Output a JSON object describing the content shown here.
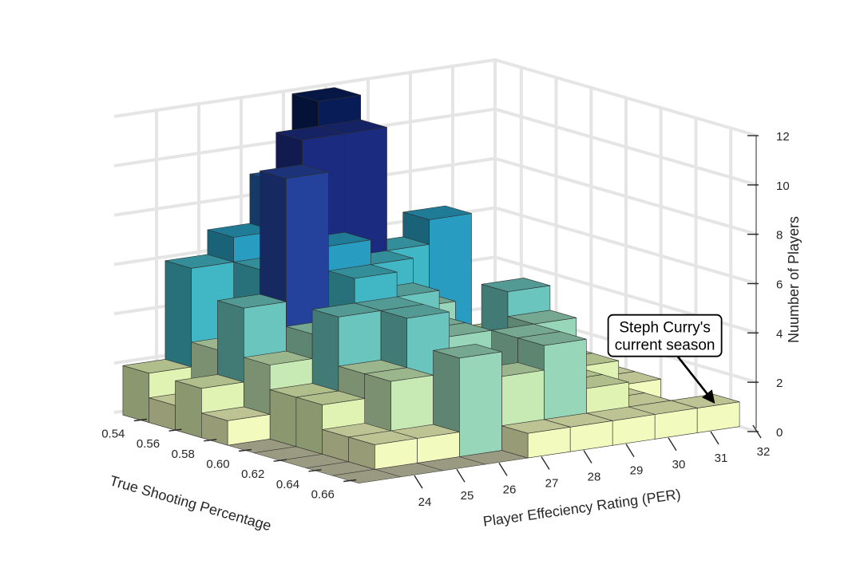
{
  "chart_data": {
    "type": "bar3d",
    "title": "",
    "xlabel": "True Shooting Percentage",
    "ylabel": "Player Effeciency Rating (PER)",
    "zlabel": "Nuumber of Players",
    "x_ticks": [
      "0.54",
      "0.56",
      "0.58",
      "0.60",
      "0.62",
      "0.64",
      "0.66"
    ],
    "y_ticks": [
      "24",
      "25",
      "26",
      "27",
      "28",
      "29",
      "30",
      "31",
      "32"
    ],
    "z_ticks": [
      "0",
      "2",
      "4",
      "6",
      "8",
      "10",
      "12"
    ],
    "xlim": [
      0.525,
      0.675
    ],
    "ylim": [
      23.0,
      32.0
    ],
    "zlim": [
      0,
      12
    ],
    "x_bins": [
      0.53,
      0.545,
      0.56,
      0.575,
      0.59,
      0.605,
      0.62,
      0.635,
      0.65,
      0.665
    ],
    "y_bins": [
      23.0,
      24.0,
      25.0,
      26.0,
      27.0,
      28.0,
      29.0,
      30.0,
      31.0,
      32.0
    ],
    "counts": [
      [
        2,
        6,
        7,
        9,
        12,
        4,
        3,
        1,
        0
      ],
      [
        1,
        3,
        6,
        11,
        11,
        6,
        7,
        2,
        1
      ],
      [
        2,
        5,
        10,
        7,
        6,
        4,
        2,
        1,
        0
      ],
      [
        1,
        3,
        4,
        6,
        5,
        3,
        2,
        1,
        1
      ],
      [
        0,
        2,
        5,
        5,
        4,
        3,
        5,
        2,
        1
      ],
      [
        0,
        2,
        3,
        5,
        4,
        3,
        4,
        2,
        1
      ],
      [
        0,
        1,
        3,
        2,
        2,
        4,
        2,
        1,
        0
      ],
      [
        0,
        1,
        1,
        4,
        3,
        4,
        2,
        1,
        0
      ],
      [
        0,
        0,
        0,
        0,
        1,
        1,
        1,
        1,
        1
      ]
    ],
    "colormap": [
      "#ffffd9",
      "#edf8b1",
      "#c7e9b4",
      "#7fcdbb",
      "#41b6c4",
      "#1d91c0",
      "#225ea8",
      "#253494",
      "#081d58"
    ],
    "grid": true,
    "annotation": {
      "text_lines": [
        "Steph Curry's",
        "current season"
      ],
      "x": 0.665,
      "y": 31.5,
      "z": 1
    }
  }
}
